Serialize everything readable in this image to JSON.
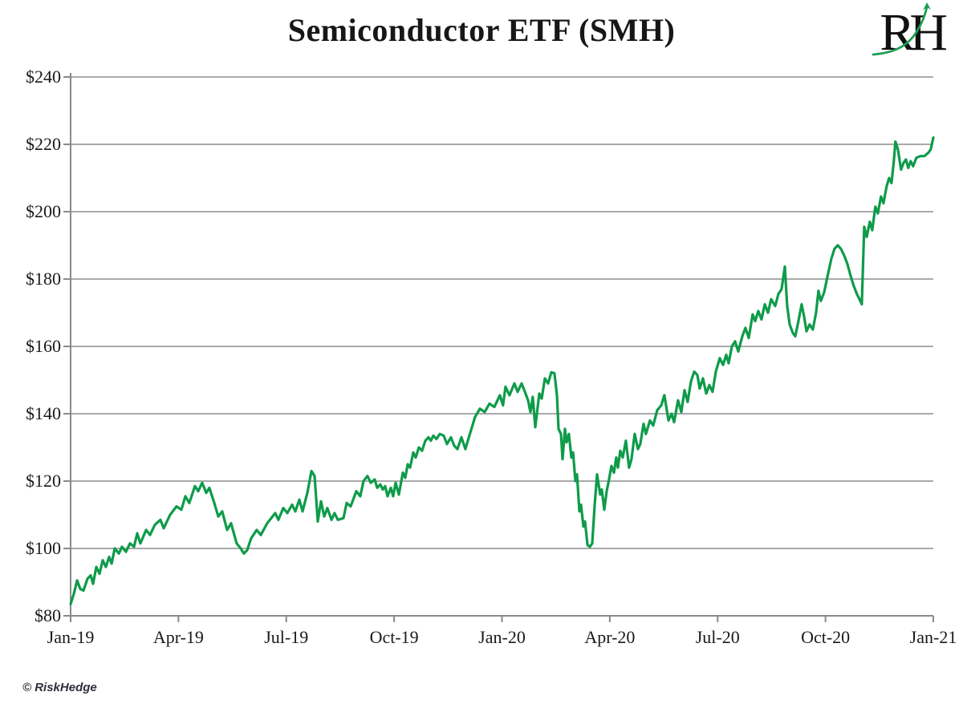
{
  "page": {
    "background": "#ffffff"
  },
  "header": {
    "title": "Semiconductor ETF (SMH)",
    "logo": {
      "letters": "RH",
      "letter_color": "#111111",
      "swoosh_color": "#1d9e52"
    }
  },
  "footer": {
    "copyright": "© RiskHedge"
  },
  "chart_data": {
    "type": "line",
    "title": "Semiconductor ETF (SMH)",
    "xlabel": "",
    "ylabel": "",
    "x_domain": [
      0,
      8
    ],
    "x_tick_positions": [
      0,
      1,
      2,
      3,
      4,
      5,
      6,
      7,
      8
    ],
    "x_tick_labels": [
      "Jan-19",
      "Apr-19",
      "Jul-19",
      "Oct-19",
      "Jan-20",
      "Apr-20",
      "Jul-20",
      "Oct-20",
      "Jan-21"
    ],
    "ylim": [
      80,
      240
    ],
    "y_ticks": [
      80,
      100,
      120,
      140,
      160,
      180,
      200,
      220,
      240
    ],
    "y_tick_prefix": "$",
    "grid": "horizontal",
    "grid_color": "#a9a9a9",
    "axis_color": "#8a8a8a",
    "legend": "none",
    "series": [
      {
        "name": "SMH",
        "color": "#0e9b4a",
        "points": [
          [
            0,
            83.5
          ],
          [
            0.03,
            86.5
          ],
          [
            0.06,
            90.5
          ],
          [
            0.089,
            88
          ],
          [
            0.119,
            87.5
          ],
          [
            0.156,
            91
          ],
          [
            0.186,
            92
          ],
          [
            0.208,
            89.5
          ],
          [
            0.238,
            94.5
          ],
          [
            0.268,
            92.5
          ],
          [
            0.298,
            96.5
          ],
          [
            0.327,
            94.5
          ],
          [
            0.357,
            97.5
          ],
          [
            0.38,
            95.5
          ],
          [
            0.409,
            100
          ],
          [
            0.447,
            98.5
          ],
          [
            0.476,
            100.5
          ],
          [
            0.513,
            99
          ],
          [
            0.551,
            101.5
          ],
          [
            0.588,
            100.5
          ],
          [
            0.618,
            104.5
          ],
          [
            0.647,
            101.5
          ],
          [
            0.7,
            105.5
          ],
          [
            0.737,
            104
          ],
          [
            0.781,
            107
          ],
          [
            0.833,
            108.5
          ],
          [
            0.863,
            106
          ],
          [
            0.923,
            110
          ],
          [
            0.982,
            112.5
          ],
          [
            1.027,
            111.5
          ],
          [
            1.064,
            115.5
          ],
          [
            1.101,
            113.5
          ],
          [
            1.153,
            118.5
          ],
          [
            1.183,
            117
          ],
          [
            1.22,
            119.5
          ],
          [
            1.258,
            116.5
          ],
          [
            1.287,
            118
          ],
          [
            1.332,
            113.5
          ],
          [
            1.369,
            109.5
          ],
          [
            1.406,
            111
          ],
          [
            1.451,
            105.5
          ],
          [
            1.488,
            107.5
          ],
          [
            1.54,
            101.5
          ],
          [
            1.578,
            100
          ],
          [
            1.607,
            98.5
          ],
          [
            1.637,
            99.5
          ],
          [
            1.674,
            103
          ],
          [
            1.726,
            105.5
          ],
          [
            1.764,
            104
          ],
          [
            1.823,
            107.5
          ],
          [
            1.898,
            110.5
          ],
          [
            1.927,
            108.5
          ],
          [
            1.972,
            112
          ],
          [
            2.009,
            110.5
          ],
          [
            2.054,
            113
          ],
          [
            2.084,
            111
          ],
          [
            2.121,
            114.5
          ],
          [
            2.151,
            111
          ],
          [
            2.195,
            116.5
          ],
          [
            2.233,
            123
          ],
          [
            2.262,
            121.5
          ],
          [
            2.292,
            108
          ],
          [
            2.322,
            114
          ],
          [
            2.352,
            109.5
          ],
          [
            2.381,
            112
          ],
          [
            2.419,
            108.5
          ],
          [
            2.448,
            110.5
          ],
          [
            2.478,
            108.5
          ],
          [
            2.53,
            109
          ],
          [
            2.56,
            113.5
          ],
          [
            2.597,
            112.5
          ],
          [
            2.649,
            117
          ],
          [
            2.686,
            115.5
          ],
          [
            2.716,
            120
          ],
          [
            2.753,
            121.5
          ],
          [
            2.783,
            119.5
          ],
          [
            2.82,
            120.5
          ],
          [
            2.843,
            118
          ],
          [
            2.872,
            119
          ],
          [
            2.895,
            117.5
          ],
          [
            2.917,
            118.5
          ],
          [
            2.939,
            115.5
          ],
          [
            2.969,
            118
          ],
          [
            2.991,
            115.5
          ],
          [
            3.014,
            119.5
          ],
          [
            3.044,
            116
          ],
          [
            3.081,
            122.5
          ],
          [
            3.103,
            121
          ],
          [
            3.126,
            125
          ],
          [
            3.148,
            124
          ],
          [
            3.178,
            128.5
          ],
          [
            3.2,
            127
          ],
          [
            3.23,
            130
          ],
          [
            3.259,
            129
          ],
          [
            3.289,
            132
          ],
          [
            3.319,
            133
          ],
          [
            3.341,
            132
          ],
          [
            3.364,
            133.5
          ],
          [
            3.393,
            132.5
          ],
          [
            3.423,
            134
          ],
          [
            3.46,
            133.5
          ],
          [
            3.49,
            131
          ],
          [
            3.527,
            133
          ],
          [
            3.557,
            130.5
          ],
          [
            3.587,
            129.5
          ],
          [
            3.624,
            133
          ],
          [
            3.661,
            129.5
          ],
          [
            3.698,
            133.5
          ],
          [
            3.75,
            139
          ],
          [
            3.795,
            141.5
          ],
          [
            3.84,
            140.5
          ],
          [
            3.884,
            143
          ],
          [
            3.929,
            142
          ],
          [
            3.981,
            145.5
          ],
          [
            4.01,
            142.5
          ],
          [
            4.033,
            148
          ],
          [
            4.07,
            145.5
          ],
          [
            4.115,
            149
          ],
          [
            4.145,
            146.5
          ],
          [
            4.182,
            149
          ],
          [
            4.219,
            146
          ],
          [
            4.242,
            144
          ],
          [
            4.264,
            140.5
          ],
          [
            4.286,
            145
          ],
          [
            4.309,
            136
          ],
          [
            4.346,
            146
          ],
          [
            4.368,
            144.5
          ],
          [
            4.398,
            150.5
          ],
          [
            4.428,
            149
          ],
          [
            4.458,
            152.3
          ],
          [
            4.487,
            152
          ],
          [
            4.51,
            145.5
          ],
          [
            4.525,
            135.5
          ],
          [
            4.547,
            134
          ],
          [
            4.562,
            126.5
          ],
          [
            4.584,
            135.5
          ],
          [
            4.599,
            131.5
          ],
          [
            4.621,
            134
          ],
          [
            4.644,
            127
          ],
          [
            4.659,
            128.5
          ],
          [
            4.681,
            120
          ],
          [
            4.696,
            122
          ],
          [
            4.718,
            111
          ],
          [
            4.733,
            113
          ],
          [
            4.755,
            106.5
          ],
          [
            4.77,
            108
          ],
          [
            4.793,
            101
          ],
          [
            4.815,
            100.5
          ],
          [
            4.837,
            101.5
          ],
          [
            4.859,
            112.5
          ],
          [
            4.882,
            122
          ],
          [
            4.911,
            116
          ],
          [
            4.926,
            117.5
          ],
          [
            4.949,
            111.5
          ],
          [
            4.971,
            117
          ],
          [
            4.993,
            120.5
          ],
          [
            5.015,
            124.5
          ],
          [
            5.038,
            122.5
          ],
          [
            5.06,
            127
          ],
          [
            5.075,
            124
          ],
          [
            5.097,
            129
          ],
          [
            5.12,
            127
          ],
          [
            5.149,
            132
          ],
          [
            5.179,
            124
          ],
          [
            5.201,
            126.5
          ],
          [
            5.231,
            134
          ],
          [
            5.261,
            129.5
          ],
          [
            5.283,
            131
          ],
          [
            5.313,
            137
          ],
          [
            5.335,
            134
          ],
          [
            5.372,
            138
          ],
          [
            5.402,
            136.5
          ],
          [
            5.439,
            141
          ],
          [
            5.477,
            142.5
          ],
          [
            5.506,
            145.5
          ],
          [
            5.544,
            138
          ],
          [
            5.573,
            140
          ],
          [
            5.596,
            137.5
          ],
          [
            5.633,
            144
          ],
          [
            5.663,
            140.5
          ],
          [
            5.693,
            147
          ],
          [
            5.722,
            143.5
          ],
          [
            5.752,
            149.5
          ],
          [
            5.782,
            152.5
          ],
          [
            5.812,
            151.5
          ],
          [
            5.834,
            147.5
          ],
          [
            5.864,
            150.5
          ],
          [
            5.894,
            146
          ],
          [
            5.923,
            148.5
          ],
          [
            5.953,
            146.5
          ],
          [
            5.983,
            152.5
          ],
          [
            6.02,
            156.5
          ],
          [
            6.05,
            154.5
          ],
          [
            6.08,
            157.5
          ],
          [
            6.102,
            155
          ],
          [
            6.132,
            160
          ],
          [
            6.162,
            161.5
          ],
          [
            6.191,
            158.5
          ],
          [
            6.229,
            163
          ],
          [
            6.258,
            165.5
          ],
          [
            6.288,
            162.5
          ],
          [
            6.325,
            169.5
          ],
          [
            6.348,
            167.5
          ],
          [
            6.377,
            170.5
          ],
          [
            6.407,
            168
          ],
          [
            6.437,
            172.5
          ],
          [
            6.467,
            170
          ],
          [
            6.496,
            174
          ],
          [
            6.534,
            172
          ],
          [
            6.563,
            175.5
          ],
          [
            6.593,
            177
          ],
          [
            6.623,
            183.7
          ],
          [
            6.645,
            172
          ],
          [
            6.668,
            166.5
          ],
          [
            6.697,
            164
          ],
          [
            6.72,
            163
          ],
          [
            6.749,
            167.5
          ],
          [
            6.779,
            172.5
          ],
          [
            6.801,
            169
          ],
          [
            6.824,
            164.5
          ],
          [
            6.853,
            166.5
          ],
          [
            6.883,
            165
          ],
          [
            6.913,
            170
          ],
          [
            6.935,
            176.5
          ],
          [
            6.957,
            173.5
          ],
          [
            6.987,
            176
          ],
          [
            7.017,
            180.5
          ],
          [
            7.054,
            186
          ],
          [
            7.084,
            189
          ],
          [
            7.114,
            190
          ],
          [
            7.143,
            189
          ],
          [
            7.173,
            187
          ],
          [
            7.203,
            184.5
          ],
          [
            7.233,
            181
          ],
          [
            7.262,
            178
          ],
          [
            7.292,
            175.5
          ],
          [
            7.315,
            174
          ],
          [
            7.337,
            172.5
          ],
          [
            7.359,
            195.5
          ],
          [
            7.382,
            192.5
          ],
          [
            7.411,
            197
          ],
          [
            7.434,
            194.5
          ],
          [
            7.463,
            201.5
          ],
          [
            7.486,
            199.5
          ],
          [
            7.515,
            204.5
          ],
          [
            7.538,
            202.5
          ],
          [
            7.567,
            207.5
          ],
          [
            7.59,
            210
          ],
          [
            7.612,
            208.5
          ],
          [
            7.634,
            215
          ],
          [
            7.649,
            220.8
          ],
          [
            7.672,
            218.5
          ],
          [
            7.701,
            212.5
          ],
          [
            7.724,
            214.5
          ],
          [
            7.746,
            215.5
          ],
          [
            7.768,
            213
          ],
          [
            7.79,
            215
          ],
          [
            7.813,
            213.5
          ],
          [
            7.842,
            216
          ],
          [
            7.88,
            216.5
          ],
          [
            7.917,
            216.5
          ],
          [
            7.954,
            217.5
          ],
          [
            7.976,
            218.5
          ],
          [
            8,
            222
          ]
        ]
      }
    ]
  }
}
